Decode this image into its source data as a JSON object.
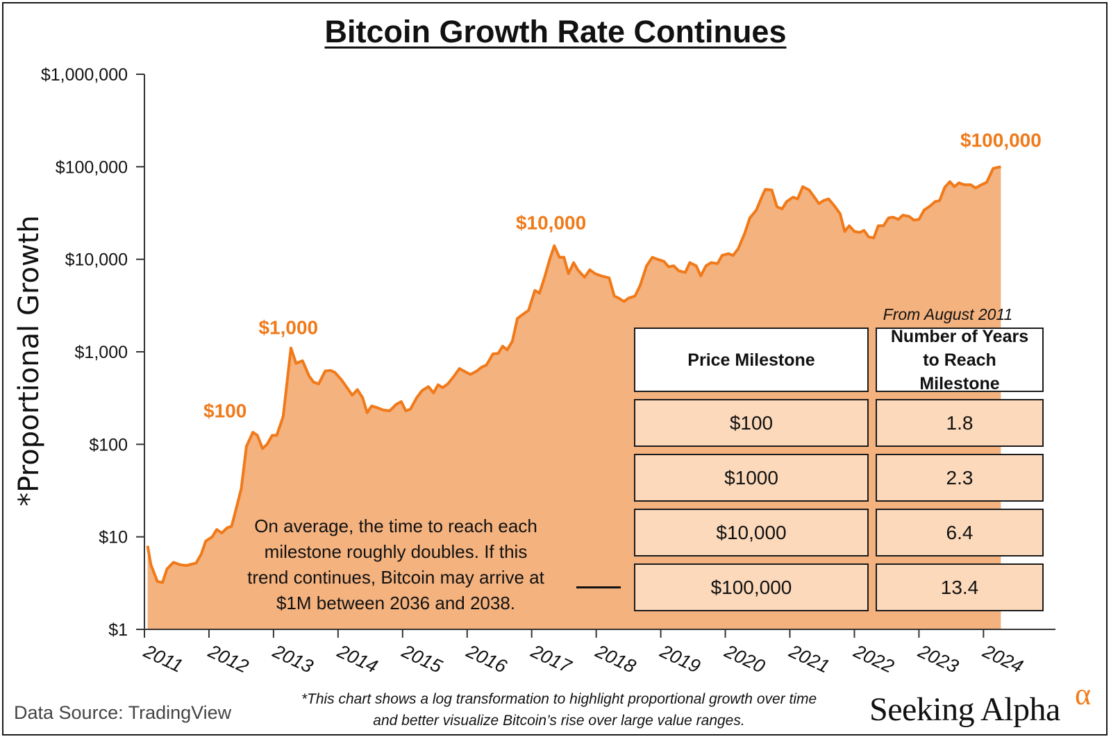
{
  "title": "Bitcoin Growth Rate Continues",
  "colors": {
    "line": "#f07a1a",
    "fill": "#f4b27f",
    "table_fill": "#fcd9bb",
    "text": "#111111"
  },
  "chart_data": {
    "type": "area",
    "title": "Bitcoin Growth Rate Continues",
    "ylabel": "*Proportional Growth",
    "xlabel": "",
    "y_scale": "log",
    "ylim": [
      1,
      1000000
    ],
    "xlim": [
      2011.0,
      2024.9
    ],
    "y_ticks": [
      1,
      10,
      100,
      1000,
      10000,
      100000,
      1000000
    ],
    "y_tick_labels": [
      "$1",
      "$10",
      "$100",
      "$1,000",
      "$10,000",
      "$100,000",
      "$1,000,000"
    ],
    "x_ticks": [
      2011,
      2012,
      2013,
      2014,
      2015,
      2016,
      2017,
      2018,
      2019,
      2020,
      2021,
      2022,
      2023,
      2024
    ],
    "x_tick_labels": [
      "2011",
      "2012",
      "2013",
      "2014",
      "2015",
      "2016",
      "2017",
      "2018",
      "2019",
      "2020",
      "2021",
      "2022",
      "2023",
      "2024"
    ],
    "grid": false,
    "series": [
      {
        "values": [
          [
            2011.05,
            8
          ],
          [
            2011.1,
            5
          ],
          [
            2011.2,
            3.3
          ],
          [
            2011.28,
            3.2
          ],
          [
            2011.35,
            4.5
          ],
          [
            2011.45,
            5.3
          ],
          [
            2011.55,
            5
          ],
          [
            2011.65,
            4.9
          ],
          [
            2011.8,
            5.2
          ],
          [
            2011.88,
            6.5
          ],
          [
            2011.95,
            9
          ],
          [
            2012.05,
            10
          ],
          [
            2012.12,
            12
          ],
          [
            2012.2,
            11
          ],
          [
            2012.28,
            12.5
          ],
          [
            2012.35,
            13
          ],
          [
            2012.42,
            20
          ],
          [
            2012.5,
            33
          ],
          [
            2012.58,
            95
          ],
          [
            2012.68,
            135
          ],
          [
            2012.75,
            125
          ],
          [
            2012.83,
            90
          ],
          [
            2012.9,
            100
          ],
          [
            2012.98,
            125
          ],
          [
            2013.05,
            125
          ],
          [
            2013.15,
            200
          ],
          [
            2013.27,
            1100
          ],
          [
            2013.35,
            750
          ],
          [
            2013.45,
            800
          ],
          [
            2013.55,
            550
          ],
          [
            2013.62,
            470
          ],
          [
            2013.7,
            450
          ],
          [
            2013.8,
            620
          ],
          [
            2013.88,
            630
          ],
          [
            2013.95,
            600
          ],
          [
            2014.05,
            500
          ],
          [
            2014.15,
            400
          ],
          [
            2014.22,
            340
          ],
          [
            2014.3,
            390
          ],
          [
            2014.38,
            320
          ],
          [
            2014.45,
            220
          ],
          [
            2014.52,
            260
          ],
          [
            2014.6,
            250
          ],
          [
            2014.7,
            235
          ],
          [
            2014.8,
            230
          ],
          [
            2014.9,
            270
          ],
          [
            2014.98,
            290
          ],
          [
            2015.05,
            230
          ],
          [
            2015.12,
            240
          ],
          [
            2015.22,
            320
          ],
          [
            2015.3,
            380
          ],
          [
            2015.4,
            420
          ],
          [
            2015.48,
            360
          ],
          [
            2015.55,
            440
          ],
          [
            2015.62,
            410
          ],
          [
            2015.7,
            450
          ],
          [
            2015.8,
            550
          ],
          [
            2015.88,
            660
          ],
          [
            2015.95,
            620
          ],
          [
            2016.05,
            570
          ],
          [
            2016.15,
            620
          ],
          [
            2016.22,
            680
          ],
          [
            2016.3,
            720
          ],
          [
            2016.4,
            950
          ],
          [
            2016.48,
            960
          ],
          [
            2016.55,
            1150
          ],
          [
            2016.62,
            1050
          ],
          [
            2016.7,
            1300
          ],
          [
            2016.78,
            2300
          ],
          [
            2016.85,
            2500
          ],
          [
            2016.95,
            2800
          ],
          [
            2017.05,
            4600
          ],
          [
            2017.12,
            4300
          ],
          [
            2017.2,
            6400
          ],
          [
            2017.28,
            10000
          ],
          [
            2017.35,
            14000
          ],
          [
            2017.43,
            10500
          ],
          [
            2017.5,
            10500
          ],
          [
            2017.57,
            7000
          ],
          [
            2017.65,
            9200
          ],
          [
            2017.72,
            7600
          ],
          [
            2017.82,
            6400
          ],
          [
            2017.9,
            7700
          ],
          [
            2017.98,
            7000
          ],
          [
            2018.08,
            6600
          ],
          [
            2018.2,
            6300
          ],
          [
            2018.28,
            4000
          ],
          [
            2018.35,
            3800
          ],
          [
            2018.43,
            3500
          ],
          [
            2018.5,
            3800
          ],
          [
            2018.6,
            4000
          ],
          [
            2018.68,
            5200
          ],
          [
            2018.78,
            8500
          ],
          [
            2018.87,
            10500
          ],
          [
            2018.95,
            10000
          ],
          [
            2019.05,
            9500
          ],
          [
            2019.12,
            8300
          ],
          [
            2019.2,
            8500
          ],
          [
            2019.28,
            7500
          ],
          [
            2019.38,
            7200
          ],
          [
            2019.45,
            9200
          ],
          [
            2019.55,
            8500
          ],
          [
            2019.62,
            6600
          ],
          [
            2019.7,
            8500
          ],
          [
            2019.78,
            9200
          ],
          [
            2019.88,
            9000
          ],
          [
            2019.95,
            11000
          ],
          [
            2020.05,
            11500
          ],
          [
            2020.12,
            11000
          ],
          [
            2020.2,
            13000
          ],
          [
            2020.3,
            19000
          ],
          [
            2020.38,
            28000
          ],
          [
            2020.48,
            34000
          ],
          [
            2020.58,
            50000
          ],
          [
            2020.62,
            57000
          ],
          [
            2020.72,
            56000
          ],
          [
            2020.8,
            37000
          ],
          [
            2020.88,
            35000
          ],
          [
            2020.95,
            42000
          ],
          [
            2021.05,
            47000
          ],
          [
            2021.12,
            45000
          ],
          [
            2021.2,
            61000
          ],
          [
            2021.3,
            56000
          ],
          [
            2021.38,
            47000
          ],
          [
            2021.45,
            40000
          ],
          [
            2021.52,
            43000
          ],
          [
            2021.6,
            45000
          ],
          [
            2021.7,
            37000
          ],
          [
            2021.78,
            31000
          ],
          [
            2021.85,
            20000
          ],
          [
            2021.92,
            23000
          ],
          [
            2022.0,
            20000
          ],
          [
            2022.08,
            19500
          ],
          [
            2022.15,
            20500
          ],
          [
            2022.22,
            17500
          ],
          [
            2022.3,
            17000
          ],
          [
            2022.37,
            23000
          ],
          [
            2022.45,
            23000
          ],
          [
            2022.53,
            28000
          ],
          [
            2022.6,
            28500
          ],
          [
            2022.68,
            27000
          ],
          [
            2022.75,
            30000
          ],
          [
            2022.85,
            29000
          ],
          [
            2022.92,
            26500
          ],
          [
            2023.0,
            27000
          ],
          [
            2023.08,
            34000
          ],
          [
            2023.18,
            38000
          ],
          [
            2023.25,
            42000
          ],
          [
            2023.32,
            43000
          ],
          [
            2023.4,
            60000
          ],
          [
            2023.48,
            69000
          ],
          [
            2023.55,
            61000
          ],
          [
            2023.62,
            67000
          ],
          [
            2023.7,
            64000
          ],
          [
            2023.8,
            64000
          ],
          [
            2023.88,
            59000
          ],
          [
            2023.95,
            63000
          ],
          [
            2024.05,
            68000
          ],
          [
            2024.15,
            96000
          ],
          [
            2024.27,
            100000
          ]
        ]
      }
    ],
    "annotations": [
      {
        "text": "$100",
        "x": 2012.25,
        "y": 195
      },
      {
        "text": "$1,000",
        "x": 2013.23,
        "y": 1550
      },
      {
        "text": "$10,000",
        "x": 2017.3,
        "y": 21000
      },
      {
        "text": "$100,000",
        "x": 2024.27,
        "y": 165000
      }
    ]
  },
  "note": "On average, the time to reach each milestone roughly doubles. If this trend continues, Bitcoin may arrive at $1M between 2036 and 2038.",
  "table": {
    "caption": "From August 2011",
    "headers": [
      "Price Milestone",
      "Number of Years to Reach Milestone"
    ],
    "rows": [
      [
        "$100",
        "1.8"
      ],
      [
        "$1000",
        "2.3"
      ],
      [
        "$10,000",
        "6.4"
      ],
      [
        "$100,000",
        "13.4"
      ]
    ]
  },
  "footnote": "*This chart shows a log transformation to highlight proportional growth over time and better visualize Bitcoin’s rise over large value ranges.",
  "source": "Data Source: TradingView",
  "logo": {
    "text": "Seeking Alpha",
    "symbol": "α"
  }
}
